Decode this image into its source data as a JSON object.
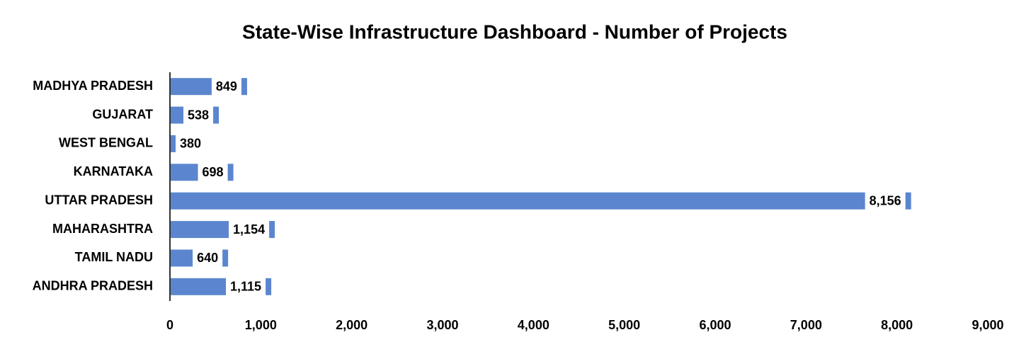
{
  "chart_data": {
    "type": "bar",
    "orientation": "horizontal",
    "title": "State-Wise Infrastructure Dashboard - Number of Projects",
    "categories": [
      "MADHYA PRADESH",
      "GUJARAT",
      "WEST BENGAL",
      "KARNATAKA",
      "UTTAR PRADESH",
      "MAHARASHTRA",
      "TAMIL NADU",
      "ANDHRA PRADESH"
    ],
    "values": [
      849,
      538,
      380,
      698,
      8156,
      1154,
      640,
      1115
    ],
    "value_labels": [
      "849",
      "538",
      "380",
      "698",
      "8,156",
      "1,154",
      "640",
      "1,115"
    ],
    "color": "#5b86cf",
    "xlim": [
      0,
      9000
    ],
    "xticks": [
      0,
      {
        "value": 1000,
        "label": "1,000"
      },
      {
        "value": 2000,
        "label": "2,000"
      },
      {
        "value": 3000,
        "label": "3,000"
      },
      {
        "value": 4000,
        "label": "4,000"
      },
      {
        "value": 5000,
        "label": "5,000"
      },
      {
        "value": 6000,
        "label": "6,000"
      },
      {
        "value": 7000,
        "label": "7,000"
      },
      {
        "value": 8000,
        "label": "8,000"
      },
      {
        "value": 9000,
        "label": "9,000"
      }
    ],
    "grid": false
  }
}
